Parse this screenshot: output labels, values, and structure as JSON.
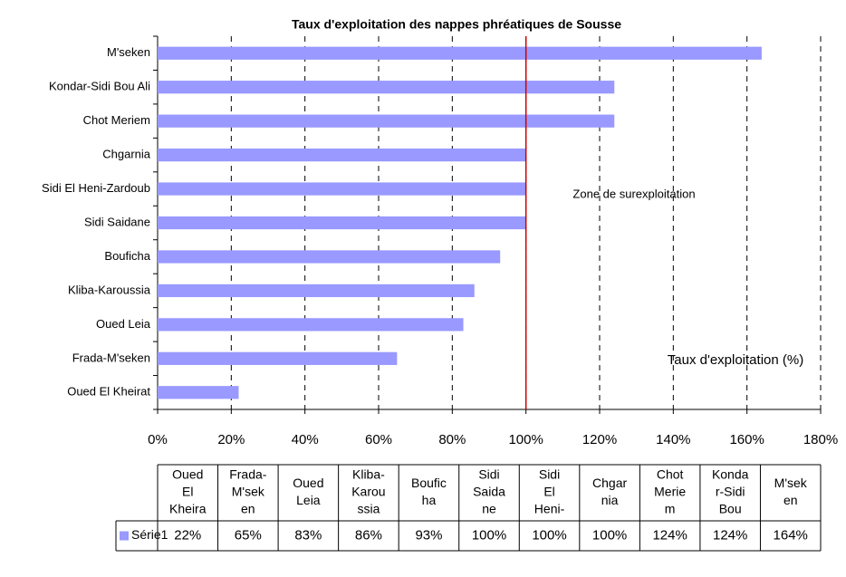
{
  "chart_data": {
    "type": "barh",
    "title": "Taux d'exploitation des nappes phréatiques de Sousse",
    "categories": [
      "Oued El Kheirat",
      "Frada-M'seken",
      "Oued Leia",
      "Kliba-Karoussia",
      "Bouficha",
      "Sidi Saidane",
      "Sidi El Heni-Zardoub",
      "Chgarnia",
      "Chot Meriem",
      "Kondar-Sidi Bou Ali",
      "M'seken"
    ],
    "series": [
      {
        "name": "Série1",
        "color": "#9999ff",
        "values": [
          22,
          65,
          83,
          86,
          93,
          100,
          100,
          100,
          124,
          124,
          164
        ],
        "value_labels": [
          "22%",
          "65%",
          "83%",
          "86%",
          "93%",
          "100%",
          "100%",
          "100%",
          "124%",
          "124%",
          "164%"
        ]
      }
    ],
    "table_headers": [
      [
        "Oued",
        "El",
        "Kheira"
      ],
      [
        "Frada-",
        "M'sek",
        "en"
      ],
      [
        "Oued",
        "Leia"
      ],
      [
        "Kliba-",
        "Karou",
        "ssia"
      ],
      [
        "Boufic",
        "ha"
      ],
      [
        "Sidi",
        "Saida",
        "ne"
      ],
      [
        "Sidi",
        "El",
        "Heni-"
      ],
      [
        "Chgar",
        "nia"
      ],
      [
        "Chot",
        "Merie",
        "m"
      ],
      [
        "Konda",
        "r-Sidi",
        "Bou"
      ],
      [
        "M'sek",
        "en"
      ]
    ],
    "xlim": [
      0,
      180
    ],
    "xticks": [
      {
        "value": 0,
        "label": "0%"
      },
      {
        "value": 20,
        "label": "20%"
      },
      {
        "value": 40,
        "label": "40%"
      },
      {
        "value": 60,
        "label": "60%"
      },
      {
        "value": 80,
        "label": "80%"
      },
      {
        "value": 100,
        "label": "100%"
      },
      {
        "value": 120,
        "label": "120%"
      },
      {
        "value": 140,
        "label": "140%"
      },
      {
        "value": 160,
        "label": "160%"
      },
      {
        "value": 180,
        "label": "180%"
      }
    ],
    "grid": true,
    "reference_line": {
      "value": 100,
      "color": "#cc0000"
    },
    "annotations": [
      "Zone de surexploitation",
      "Taux d'exploitation (%)"
    ]
  }
}
